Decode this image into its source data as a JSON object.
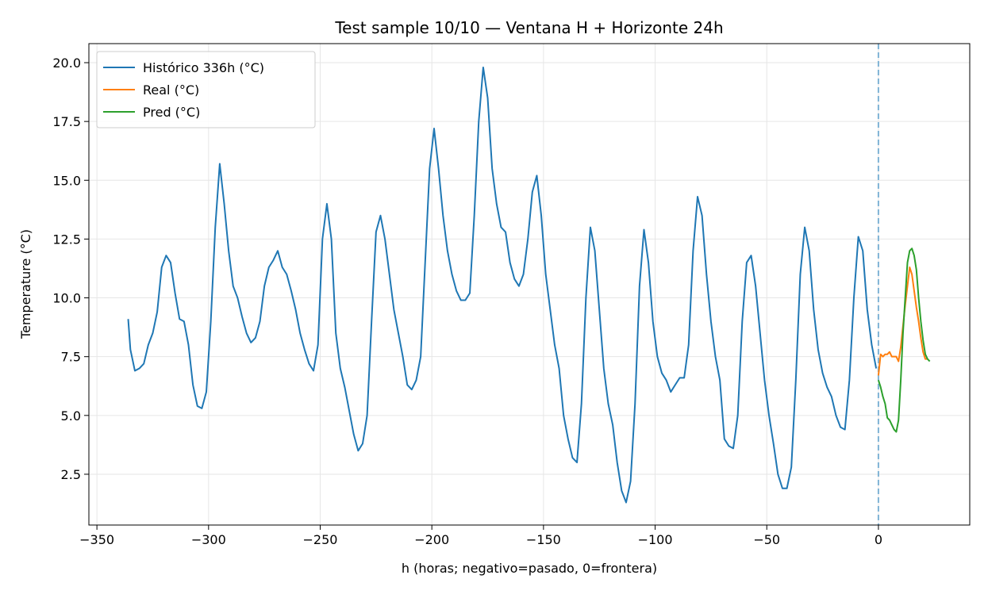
{
  "chart_data": {
    "type": "line",
    "title": "Test sample 10/10 — Ventana H + Horizonte 24h",
    "x_label": "h (horas; negativo=pasado, 0=frontera)",
    "y_label": "Temperature (°C)",
    "xlim": [
      -353.6,
      40.9
    ],
    "ylim": [
      0.34,
      20.81
    ],
    "xticks": [
      {
        "value": -350,
        "label": "−350"
      },
      {
        "value": -300,
        "label": "−300"
      },
      {
        "value": -250,
        "label": "−250"
      },
      {
        "value": -200,
        "label": "−200"
      },
      {
        "value": -150,
        "label": "−150"
      },
      {
        "value": -100,
        "label": "−100"
      },
      {
        "value": -50,
        "label": "−50"
      },
      0
    ],
    "yticks": [
      2.5,
      {
        "value": 5,
        "label": "5.0"
      },
      7.5,
      {
        "value": 10,
        "label": "10.0"
      },
      12.5,
      {
        "value": 15,
        "label": "15.0"
      },
      17.5,
      {
        "value": 20,
        "label": "20.0"
      }
    ],
    "grid": true,
    "legend": "upper left",
    "vline": {
      "x": 0,
      "color": "#7fb3d5",
      "dashed": true
    },
    "series": [
      {
        "name": "Histórico 336h (°C)",
        "color": "#1f77b4",
        "x": [
          -336,
          -335,
          -333,
          -331,
          -329,
          -327,
          -325,
          -323,
          -321,
          -319,
          -317,
          -315,
          -313,
          -311,
          -309,
          -307,
          -305,
          -303,
          -301,
          -299,
          -297,
          -295,
          -293,
          -291,
          -289,
          -287,
          -285,
          -283,
          -281,
          -279,
          -277,
          -275,
          -273,
          -271,
          -269,
          -267,
          -265,
          -263,
          -261,
          -259,
          -257,
          -255,
          -253,
          -251,
          -249,
          -247,
          -245,
          -243,
          -241,
          -239,
          -237,
          -235,
          -233,
          -231,
          -229,
          -227,
          -225,
          -223,
          -221,
          -219,
          -217,
          -215,
          -213,
          -211,
          -209,
          -207,
          -205,
          -203,
          -201,
          -199,
          -197,
          -195,
          -193,
          -191,
          -189,
          -187,
          -185,
          -183,
          -181,
          -179,
          -177,
          -175,
          -173,
          -171,
          -169,
          -167,
          -165,
          -163,
          -161,
          -159,
          -157,
          -155,
          -153,
          -151,
          -149,
          -147,
          -145,
          -143,
          -141,
          -139,
          -137,
          -135,
          -133,
          -131,
          -129,
          -127,
          -125,
          -123,
          -121,
          -119,
          -117,
          -115,
          -113,
          -111,
          -109,
          -107,
          -105,
          -103,
          -101,
          -99,
          -97,
          -95,
          -93,
          -91,
          -89,
          -87,
          -85,
          -83,
          -81,
          -79,
          -77,
          -75,
          -73,
          -71,
          -69,
          -67,
          -65,
          -63,
          -61,
          -59,
          -57,
          -55,
          -53,
          -51,
          -49,
          -47,
          -45,
          -43,
          -41,
          -39,
          -37,
          -35,
          -33,
          -31,
          -29,
          -27,
          -25,
          -23,
          -21,
          -19,
          -17,
          -15,
          -13,
          -11,
          -9,
          -7,
          -5,
          -3,
          -1
        ],
        "values": [
          9.1,
          7.8,
          6.9,
          7.0,
          7.2,
          8.0,
          8.5,
          9.4,
          11.3,
          11.8,
          11.5,
          10.2,
          9.1,
          9.0,
          8.0,
          6.3,
          5.4,
          5.3,
          6.0,
          9.0,
          13.0,
          15.7,
          14.0,
          12.0,
          10.5,
          10.0,
          9.2,
          8.5,
          8.1,
          8.3,
          9.0,
          10.5,
          11.3,
          11.6,
          12.0,
          11.3,
          11.0,
          10.3,
          9.5,
          8.5,
          7.8,
          7.2,
          6.9,
          8.0,
          12.5,
          14.0,
          12.5,
          8.5,
          7.0,
          6.2,
          5.2,
          4.2,
          3.5,
          3.8,
          5.0,
          9.0,
          12.8,
          13.5,
          12.5,
          11.0,
          9.5,
          8.5,
          7.5,
          6.3,
          6.1,
          6.5,
          7.5,
          11.5,
          15.5,
          17.2,
          15.5,
          13.5,
          12.0,
          11.0,
          10.3,
          9.9,
          9.9,
          10.2,
          13.5,
          17.5,
          19.8,
          18.5,
          15.5,
          14.0,
          13.0,
          12.8,
          11.5,
          10.8,
          10.5,
          11.0,
          12.5,
          14.5,
          15.2,
          13.5,
          11.0,
          9.5,
          8.0,
          7.0,
          5.0,
          4.0,
          3.2,
          3.0,
          5.5,
          10.0,
          13.0,
          12.0,
          9.5,
          7.0,
          5.5,
          4.6,
          3.0,
          1.8,
          1.3,
          2.2,
          5.5,
          10.5,
          12.9,
          11.5,
          9.0,
          7.5,
          6.8,
          6.5,
          6.0,
          6.3,
          6.6,
          6.6,
          8.0,
          12.0,
          14.3,
          13.5,
          11.0,
          9.0,
          7.5,
          6.5,
          4.0,
          3.7,
          3.6,
          5.0,
          9.0,
          11.5,
          11.8,
          10.5,
          8.5,
          6.5,
          5.0,
          3.8,
          2.5,
          1.9,
          1.9,
          2.8,
          6.5,
          11.0,
          13.0,
          12.0,
          9.5,
          7.8,
          6.8,
          6.2,
          5.8,
          5.0,
          4.5,
          4.4,
          6.5,
          10.0,
          12.6,
          12.0,
          9.5,
          8.0,
          7.0
        ]
      },
      {
        "name": "Real (°C)",
        "color": "#ff7f0e",
        "x": [
          0,
          1,
          2,
          3,
          4,
          5,
          6,
          7,
          8,
          9,
          10,
          11,
          12,
          13,
          14,
          15,
          16,
          17,
          18,
          19,
          20,
          21,
          22
        ],
        "values": [
          6.7,
          7.6,
          7.5,
          7.6,
          7.6,
          7.7,
          7.5,
          7.5,
          7.5,
          7.3,
          7.9,
          8.8,
          9.7,
          10.5,
          11.3,
          11.0,
          10.3,
          9.6,
          9.0,
          8.3,
          7.7,
          7.4,
          7.4
        ]
      },
      {
        "name": "Pred (°C)",
        "color": "#2ca02c",
        "x": [
          0,
          1,
          2,
          3,
          4,
          5,
          6,
          7,
          8,
          9,
          10,
          11,
          12,
          13,
          14,
          15,
          16,
          17,
          18,
          19,
          20,
          21,
          22,
          23
        ],
        "values": [
          6.5,
          6.2,
          5.8,
          5.5,
          4.9,
          4.8,
          4.6,
          4.4,
          4.3,
          4.8,
          6.5,
          8.5,
          10.0,
          11.5,
          12.0,
          12.1,
          11.8,
          11.2,
          10.0,
          9.0,
          8.2,
          7.6,
          7.4,
          7.3
        ]
      }
    ]
  }
}
